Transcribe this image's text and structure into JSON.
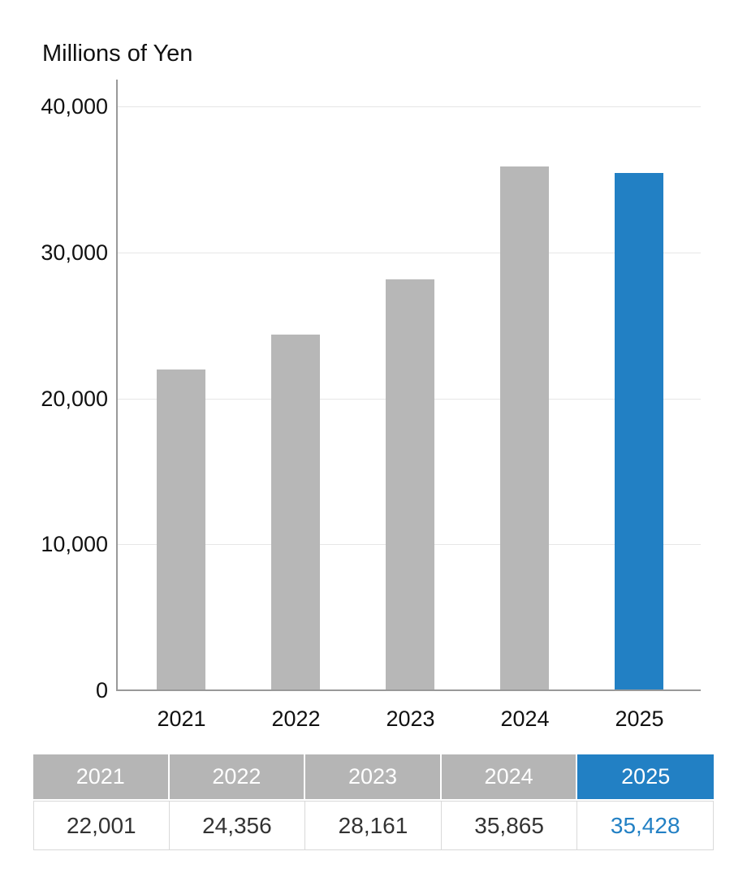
{
  "title": "Millions of Yen",
  "colors": {
    "bar_default": "#b7b7b7",
    "bar_highlight": "#2280c4",
    "grid": "#e6e6e6",
    "axis": "#999999",
    "table_header_bg": "#b5b5b5",
    "table_header_text": "#ffffff",
    "table_border": "#d9d9d9",
    "value_text": "#333333",
    "highlight_text": "#2280c4"
  },
  "chart_data": {
    "type": "bar",
    "title": "Millions of Yen",
    "categories": [
      "2021",
      "2022",
      "2023",
      "2024",
      "2025"
    ],
    "values": [
      22001,
      24356,
      28161,
      35865,
      35428
    ],
    "highlight_index": 4,
    "xlabel": "",
    "ylabel": "Millions of Yen",
    "ylim": [
      0,
      40000
    ],
    "yticks": [
      0,
      10000,
      20000,
      30000,
      40000
    ],
    "ytick_labels": [
      "0",
      "10,000",
      "20,000",
      "30,000",
      "40,000"
    ],
    "grid": true,
    "legend_position": "none"
  },
  "table": {
    "headers": [
      "2021",
      "2022",
      "2023",
      "2024",
      "2025"
    ],
    "values": [
      "22,001",
      "24,356",
      "28,161",
      "35,865",
      "35,428"
    ],
    "highlight_column": 4
  }
}
